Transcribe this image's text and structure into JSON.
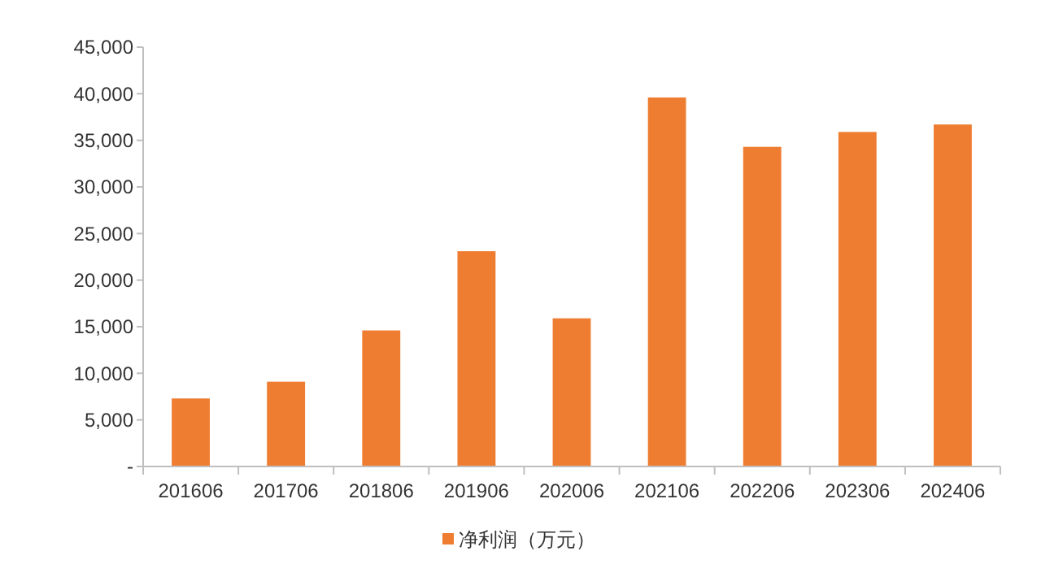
{
  "chart_data": {
    "type": "bar",
    "categories": [
      "201606",
      "201706",
      "201806",
      "201906",
      "202006",
      "202106",
      "202206",
      "202306",
      "202406"
    ],
    "series": [
      {
        "name": "净利润（万元）",
        "color": "#ef7d31",
        "values": [
          7300,
          9100,
          14600,
          23100,
          15900,
          39600,
          34300,
          35900,
          36700
        ]
      }
    ],
    "ylim": [
      0,
      45000
    ],
    "yticks": [
      {
        "value": 0,
        "label": "-"
      },
      {
        "value": 5000,
        "label": "5,000"
      },
      {
        "value": 10000,
        "label": "10,000"
      },
      {
        "value": 15000,
        "label": "15,000"
      },
      {
        "value": 20000,
        "label": "20,000"
      },
      {
        "value": 25000,
        "label": "25,000"
      },
      {
        "value": 30000,
        "label": "30,000"
      },
      {
        "value": 35000,
        "label": "35,000"
      },
      {
        "value": 40000,
        "label": "40,000"
      },
      {
        "value": 45000,
        "label": "45,000"
      }
    ],
    "grid": false,
    "legend": "bottom"
  }
}
